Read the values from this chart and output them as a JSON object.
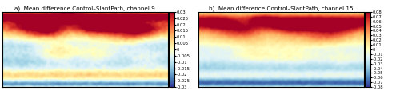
{
  "title_a": "a)  Mean difference Control–SlantPath, channel 9",
  "title_b": "b)  Mean difference Control–SlantPath, channel 15",
  "vmin_a": -0.03,
  "vmax_a": 0.03,
  "vmin_b": -0.08,
  "vmax_b": 0.08,
  "ticks_a": [
    -0.03,
    -0.025,
    -0.02,
    -0.015,
    -0.01,
    -0.005,
    0,
    0.005,
    0.01,
    0.015,
    0.02,
    0.025,
    0.03
  ],
  "ticks_b": [
    -0.08,
    -0.07,
    -0.06,
    -0.05,
    -0.04,
    -0.03,
    -0.02,
    -0.01,
    0,
    0.01,
    0.02,
    0.03,
    0.04,
    0.05,
    0.06,
    0.07,
    0.08
  ],
  "tick_labels_a": [
    "-0.03",
    "-0.025",
    "-0.02",
    "-0.015",
    "-0.01",
    "-0.005",
    "0",
    "0.005",
    "0.01",
    "0.015",
    "0.02",
    "0.025",
    "0.03"
  ],
  "tick_labels_b": [
    "-0.08",
    "-0.07",
    "-0.06",
    "-0.05",
    "-0.04",
    "-0.03",
    "-0.02",
    "-0.01",
    "0",
    "0.01",
    "0.02",
    "0.03",
    "0.04",
    "0.05",
    "0.06",
    "0.07",
    "0.08"
  ],
  "colormap": "RdYlBu_r",
  "background_color": "#ffffff",
  "fig_width": 5.0,
  "fig_height": 1.24
}
